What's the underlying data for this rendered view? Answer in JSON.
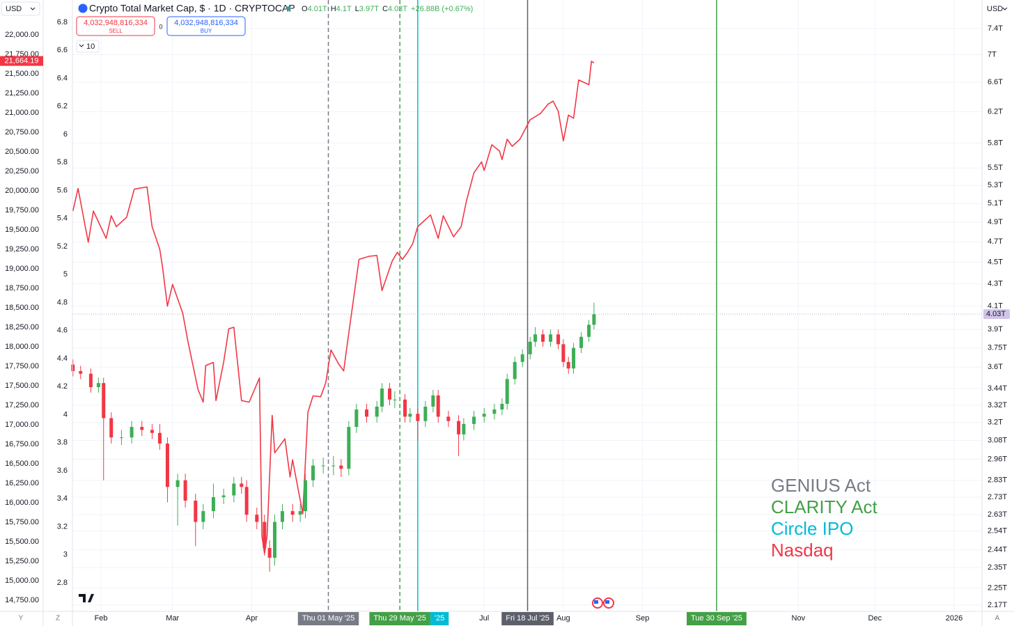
{
  "header": {
    "currency": "USD",
    "symbol": "Crypto Total Market Cap, $ · 1D · CRYPTOCAP",
    "ohlc": [
      {
        "key": "O",
        "value": "4.01T"
      },
      {
        "key": "H",
        "value": "4.1T"
      },
      {
        "key": "L",
        "value": "3.97T"
      },
      {
        "key": "C",
        "value": "4.03T"
      }
    ],
    "change": "+26.88B (+0.67%)",
    "sell": {
      "price": "4,032,948,816,334",
      "label": "SELL"
    },
    "spread": "0",
    "buy": {
      "price": "4,032,948,816,334",
      "label": "BUY"
    },
    "indicators": "10",
    "right_currency": "USD",
    "scale_buttons": [
      "Y",
      "Z",
      "A"
    ]
  },
  "chart_data": {
    "type": "candlestick",
    "grid": true,
    "xlim": [
      20.8,
      376.9
    ],
    "xticks": [
      {
        "value": 32,
        "label": "Feb"
      },
      {
        "value": 60,
        "label": "Mar"
      },
      {
        "value": 91,
        "label": "Apr"
      },
      {
        "value": 182,
        "label": "Jul"
      },
      {
        "value": 213,
        "label": "Aug"
      },
      {
        "value": 244,
        "label": "Sep"
      },
      {
        "value": 305,
        "label": "Nov"
      },
      {
        "value": 335,
        "label": "Dec"
      },
      {
        "value": 366,
        "label": "2026"
      }
    ],
    "ylim": [
      14607,
      22446
    ],
    "yticks": [
      {
        "value": 22000,
        "label": "22,000.00"
      },
      {
        "value": 21750,
        "label": "21,750.00"
      },
      {
        "value": 21500,
        "label": "21,500.00"
      },
      {
        "value": 21250,
        "label": "21,250.00"
      },
      {
        "value": 21000,
        "label": "21,000.00"
      },
      {
        "value": 20750,
        "label": "20,750.00"
      },
      {
        "value": 20500,
        "label": "20,500.00"
      },
      {
        "value": 20250,
        "label": "20,250.00"
      },
      {
        "value": 20000,
        "label": "20,000.00"
      },
      {
        "value": 19750,
        "label": "19,750.00"
      },
      {
        "value": 19500,
        "label": "19,500.00"
      },
      {
        "value": 19250,
        "label": "19,250.00"
      },
      {
        "value": 19000,
        "label": "19,000.00"
      },
      {
        "value": 18750,
        "label": "18,750.00"
      },
      {
        "value": 18500,
        "label": "18,500.00"
      },
      {
        "value": 18250,
        "label": "18,250.00"
      },
      {
        "value": 18000,
        "label": "18,000.00"
      },
      {
        "value": 17750,
        "label": "17,750.00"
      },
      {
        "value": 17500,
        "label": "17,500.00"
      },
      {
        "value": 17250,
        "label": "17,250.00"
      },
      {
        "value": 17000,
        "label": "17,000.00"
      },
      {
        "value": 16750,
        "label": "16,750.00"
      },
      {
        "value": 16500,
        "label": "16,500.00"
      },
      {
        "value": 16250,
        "label": "16,250.00"
      },
      {
        "value": 16000,
        "label": "16,000.00"
      },
      {
        "value": 15750,
        "label": "15,750.00"
      },
      {
        "value": 15500,
        "label": "15,500.00"
      },
      {
        "value": 15250,
        "label": "15,250.00"
      },
      {
        "value": 15000,
        "label": "15,000.00"
      },
      {
        "value": 14750,
        "label": "14,750.00"
      }
    ],
    "y3lim": [
      2.596,
      6.959
    ],
    "y3ticks": [
      6.8,
      6.6,
      6.4,
      6.2,
      6,
      5.8,
      5.6,
      5.4,
      5.2,
      5,
      4.8,
      4.6,
      4.4,
      4.2,
      4,
      3.8,
      3.6,
      3.4,
      3.2,
      3,
      2.8
    ],
    "y2lim": [
      2.141,
      7.863
    ],
    "y2scale": "log",
    "y2ticks": [
      {
        "value": 7.4,
        "label": "7.4T"
      },
      {
        "value": 7,
        "label": "7T"
      },
      {
        "value": 6.6,
        "label": "6.6T"
      },
      {
        "value": 6.2,
        "label": "6.2T"
      },
      {
        "value": 5.8,
        "label": "5.8T"
      },
      {
        "value": 5.5,
        "label": "5.5T"
      },
      {
        "value": 5.3,
        "label": "5.3T"
      },
      {
        "value": 5.1,
        "label": "5.1T"
      },
      {
        "value": 4.9,
        "label": "4.9T"
      },
      {
        "value": 4.7,
        "label": "4.7T"
      },
      {
        "value": 4.5,
        "label": "4.5T"
      },
      {
        "value": 4.3,
        "label": "4.3T"
      },
      {
        "value": 4.1,
        "label": "4.1T"
      },
      {
        "value": 3.9,
        "label": "3.9T"
      },
      {
        "value": 3.75,
        "label": "3.75T"
      },
      {
        "value": 3.6,
        "label": "3.6T"
      },
      {
        "value": 3.44,
        "label": "3.44T"
      },
      {
        "value": 3.32,
        "label": "3.32T"
      },
      {
        "value": 3.2,
        "label": "3.2T"
      },
      {
        "value": 3.08,
        "label": "3.08T"
      },
      {
        "value": 2.96,
        "label": "2.96T"
      },
      {
        "value": 2.83,
        "label": "2.83T"
      },
      {
        "value": 2.73,
        "label": "2.73T"
      },
      {
        "value": 2.63,
        "label": "2.63T"
      },
      {
        "value": 2.54,
        "label": "2.54T"
      },
      {
        "value": 2.44,
        "label": "2.44T"
      },
      {
        "value": 2.35,
        "label": "2.35T"
      },
      {
        "value": 2.25,
        "label": "2.25T"
      },
      {
        "value": 2.17,
        "label": "2.17T"
      }
    ],
    "vlines": [
      {
        "value": 121,
        "label": "Thu 01 May '25",
        "color": "#787b86",
        "dash": true
      },
      {
        "value": 149,
        "label": "Thu 29 May '25",
        "color": "#43a047",
        "dash": true
      },
      {
        "value": 156,
        "label": "'25",
        "color": "#00bcd4",
        "dash": false
      },
      {
        "value": 199,
        "label": "Fri 18 Jul '25",
        "color": "#5d606b",
        "dash": false
      },
      {
        "value": 273,
        "label": "Tue 30 Sep '25",
        "color": "#43a047",
        "dash": false
      }
    ],
    "annotations": [
      {
        "text": "GENIUS Act",
        "color": "#787b86"
      },
      {
        "text": "CLARITY Act",
        "color": "#43a047"
      },
      {
        "text": "Circle IPO",
        "color": "#00bcd4"
      },
      {
        "text": "Nasdaq",
        "color": "#f23645"
      }
    ],
    "series": [
      {
        "type": "line",
        "axis": "y",
        "color": "#f23645",
        "last": {
          "value": 21664.19,
          "label": "21,664.19"
        },
        "x": [
          21,
          23,
          27,
          29,
          34,
          36,
          38,
          42,
          45,
          50,
          52,
          55,
          56,
          58,
          60,
          64,
          66,
          70,
          72,
          73,
          76,
          77,
          80,
          82,
          84,
          87,
          90,
          94,
          95,
          96,
          97,
          99,
          100,
          104,
          106,
          107,
          111,
          113,
          115,
          118,
          120,
          122,
          125,
          127,
          128,
          131,
          133,
          137,
          140,
          142,
          146,
          148,
          150,
          152,
          154,
          156,
          161,
          164,
          166,
          170,
          173,
          175,
          178,
          181,
          182,
          185,
          188,
          189,
          191,
          193,
          196,
          200,
          204,
          207,
          209,
          211,
          213,
          215,
          217,
          219,
          223,
          224,
          225
        ],
        "values": [
          19740,
          20030,
          19340,
          19740,
          19390,
          19680,
          19540,
          19660,
          20020,
          20050,
          19540,
          19250,
          19040,
          18520,
          18800,
          18430,
          18070,
          17450,
          17290,
          17760,
          17800,
          17310,
          17800,
          18230,
          18250,
          17310,
          17290,
          17600,
          15570,
          15350,
          15570,
          17120,
          16640,
          16820,
          16330,
          16550,
          15860,
          17160,
          17370,
          17360,
          17540,
          17960,
          17780,
          17690,
          17940,
          18650,
          19120,
          19160,
          19170,
          18720,
          19100,
          19210,
          19120,
          19210,
          19320,
          19540,
          19690,
          19390,
          19680,
          19410,
          19540,
          19860,
          20230,
          20370,
          20260,
          20590,
          20510,
          20400,
          20660,
          20570,
          20660,
          20910,
          20990,
          21110,
          21150,
          21020,
          20640,
          20970,
          20930,
          21420,
          21360,
          21660,
          21640
        ]
      },
      {
        "type": "candlestick",
        "axis": "y2",
        "up_color": "#3dae56",
        "down_color": "#f23645",
        "last": {
          "value": 4.03,
          "label": "4.03T"
        },
        "x": [
          21,
          24,
          28,
          31,
          33,
          36,
          40,
          44,
          48,
          52,
          55,
          58,
          62,
          65,
          69,
          72,
          76,
          80,
          84,
          87,
          89,
          93,
          96,
          98,
          100,
          103,
          107,
          110,
          112,
          115,
          119,
          123,
          126,
          129,
          132,
          136,
          140,
          142,
          145,
          147,
          151,
          153,
          156,
          159,
          162,
          164,
          168,
          172,
          174,
          178,
          182,
          186,
          189,
          191,
          194,
          197,
          200,
          202,
          205,
          208,
          211,
          213,
          215,
          217,
          220,
          223,
          225
        ],
        "open": [
          3.62,
          3.57,
          3.55,
          3.45,
          3.48,
          3.23,
          3.1,
          3.1,
          3.17,
          3.15,
          3.13,
          3.06,
          2.79,
          2.83,
          2.71,
          2.59,
          2.65,
          2.73,
          2.74,
          2.81,
          2.79,
          2.63,
          2.59,
          2.45,
          2.4,
          2.59,
          2.65,
          2.63,
          2.65,
          2.83,
          2.92,
          2.92,
          2.92,
          2.9,
          3.17,
          3.29,
          3.24,
          3.31,
          3.44,
          3.36,
          3.36,
          3.24,
          3.26,
          3.21,
          3.31,
          3.39,
          3.24,
          3.21,
          3.12,
          3.19,
          3.24,
          3.26,
          3.29,
          3.33,
          3.51,
          3.64,
          3.7,
          3.8,
          3.86,
          3.8,
          3.86,
          3.78,
          3.64,
          3.59,
          3.75,
          3.84,
          3.94
        ],
        "high": [
          3.66,
          3.61,
          3.59,
          3.52,
          3.52,
          3.27,
          3.15,
          3.21,
          3.21,
          3.19,
          3.19,
          3.1,
          2.87,
          2.87,
          2.75,
          2.69,
          2.81,
          2.78,
          2.85,
          2.85,
          2.83,
          2.67,
          2.63,
          2.49,
          2.63,
          2.69,
          2.69,
          2.69,
          2.87,
          2.96,
          2.97,
          2.98,
          2.96,
          3.21,
          3.33,
          3.33,
          3.35,
          3.48,
          3.48,
          3.42,
          3.4,
          3.3,
          3.3,
          3.35,
          3.43,
          3.43,
          3.28,
          3.25,
          3.23,
          3.28,
          3.3,
          3.33,
          3.37,
          3.55,
          3.68,
          3.74,
          3.84,
          3.92,
          3.9,
          3.9,
          3.9,
          3.82,
          3.68,
          3.79,
          3.88,
          3.98,
          4.13
        ],
        "low": [
          3.53,
          3.51,
          3.41,
          3.41,
          2.83,
          3.06,
          3.05,
          3.06,
          3.11,
          3.09,
          3.02,
          2.7,
          2.57,
          2.67,
          2.46,
          2.55,
          2.61,
          2.69,
          2.7,
          2.75,
          2.59,
          2.55,
          2.41,
          2.33,
          2.36,
          2.55,
          2.59,
          2.59,
          2.61,
          2.79,
          2.87,
          2.86,
          2.85,
          2.86,
          3.13,
          3.2,
          3.2,
          3.27,
          3.32,
          3.3,
          3.2,
          3.2,
          3.08,
          3.17,
          3.27,
          3.2,
          3.17,
          2.98,
          3.08,
          3.15,
          3.2,
          3.22,
          3.25,
          3.29,
          3.47,
          3.6,
          3.66,
          3.76,
          3.76,
          3.76,
          3.74,
          3.6,
          3.55,
          3.55,
          3.71,
          3.8,
          3.9
        ],
        "close": [
          3.57,
          3.55,
          3.45,
          3.48,
          3.23,
          3.1,
          3.1,
          3.17,
          3.15,
          3.13,
          3.06,
          2.79,
          2.83,
          2.71,
          2.59,
          2.65,
          2.73,
          2.74,
          2.81,
          2.79,
          2.63,
          2.59,
          2.45,
          2.4,
          2.59,
          2.65,
          2.63,
          2.65,
          2.83,
          2.92,
          2.92,
          2.92,
          2.9,
          3.17,
          3.29,
          3.24,
          3.31,
          3.44,
          3.36,
          3.36,
          3.24,
          3.26,
          3.21,
          3.31,
          3.39,
          3.24,
          3.21,
          3.12,
          3.19,
          3.24,
          3.26,
          3.29,
          3.33,
          3.51,
          3.64,
          3.7,
          3.8,
          3.86,
          3.8,
          3.86,
          3.78,
          3.64,
          3.59,
          3.75,
          3.84,
          3.94,
          4.03
        ]
      }
    ]
  }
}
